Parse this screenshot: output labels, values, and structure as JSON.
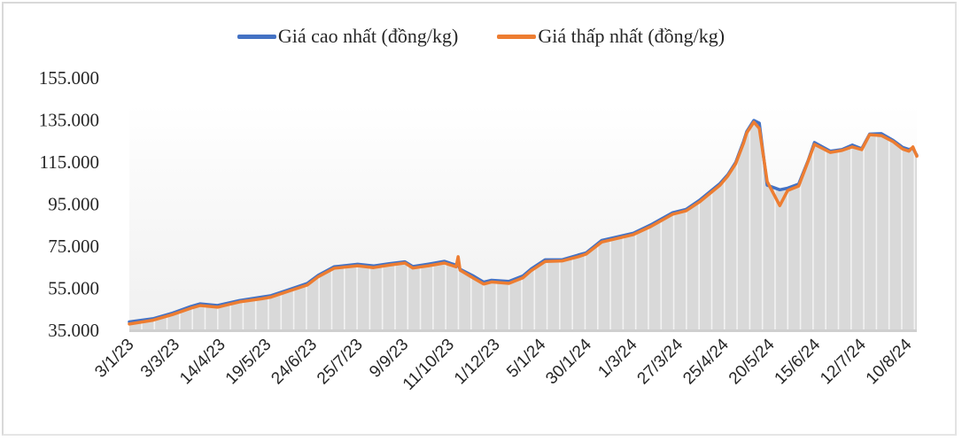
{
  "chart_data": {
    "type": "line",
    "title": "",
    "xlabel": "",
    "ylabel": "",
    "ylim": [
      35000,
      155000
    ],
    "yticks": [
      "155.000",
      "135.000",
      "115.000",
      "95.000",
      "75.000",
      "55.000",
      "35.000"
    ],
    "ytick_values": [
      155000,
      135000,
      115000,
      95000,
      75000,
      55000,
      35000
    ],
    "grid": false,
    "legend_position": "top",
    "area_fill": true,
    "x_tick_labels": [
      "3/1/23",
      "3/3/23",
      "14/4/23",
      "19/5/23",
      "24/6/23",
      "25/7/23",
      "9/9/23",
      "11/10/23",
      "1/12/23",
      "5/1/24",
      "30/1/24",
      "1/3/24",
      "27/3/24",
      "25/4/24",
      "20/5/24",
      "15/6/24",
      "12/7/24",
      "10/8/24"
    ],
    "x": [
      0,
      0.03,
      0.055,
      0.078,
      0.09,
      0.112,
      0.14,
      0.168,
      0.18,
      0.2,
      0.226,
      0.24,
      0.26,
      0.29,
      0.31,
      0.33,
      0.35,
      0.36,
      0.38,
      0.4,
      0.415,
      0.4175,
      0.42,
      0.437,
      0.45,
      0.46,
      0.482,
      0.5,
      0.51,
      0.528,
      0.55,
      0.57,
      0.58,
      0.6,
      0.615,
      0.64,
      0.662,
      0.69,
      0.707,
      0.724,
      0.75,
      0.76,
      0.77,
      0.78,
      0.784,
      0.793,
      0.8,
      0.81,
      0.826,
      0.836,
      0.85,
      0.862,
      0.87,
      0.89,
      0.905,
      0.918,
      0.93,
      0.94,
      0.955,
      0.97,
      0.982,
      0.99,
      0.995,
      1.0
    ],
    "series": [
      {
        "name": "Giá cao nhất (đồng/kg)",
        "color": "#4472C4",
        "values": [
          39000,
          40500,
          43200,
          46300,
          47600,
          46800,
          49200,
          50800,
          51500,
          54000,
          57300,
          61200,
          65200,
          66400,
          65600,
          66700,
          67600,
          65300,
          66500,
          67800,
          66000,
          66300,
          64000,
          60800,
          57900,
          58800,
          58300,
          60900,
          64100,
          68500,
          68600,
          70800,
          71800,
          77800,
          79000,
          81200,
          85100,
          90900,
          92500,
          96800,
          104800,
          109000,
          114800,
          124800,
          129500,
          134800,
          133500,
          104000,
          101800,
          102600,
          104500,
          115700,
          124300,
          120200,
          121000,
          123100,
          121300,
          128300,
          128500,
          125300,
          122000,
          121000,
          121600,
          118200
        ]
      },
      {
        "name": "Giá thấp nhất (đồng/kg)",
        "color": "#ED7D31",
        "values": [
          38000,
          39800,
          42500,
          45500,
          46800,
          46000,
          48500,
          50000,
          50800,
          53300,
          56500,
          60500,
          64500,
          65700,
          64800,
          66000,
          67000,
          64600,
          65700,
          67000,
          65200,
          70000,
          63600,
          59800,
          57000,
          58000,
          57300,
          60000,
          63300,
          67700,
          68000,
          70000,
          71200,
          77000,
          78300,
          80500,
          84300,
          90200,
          91800,
          96000,
          104000,
          108400,
          114200,
          124000,
          128900,
          134000,
          131000,
          105700,
          94300,
          101500,
          103600,
          115400,
          123400,
          119600,
          120500,
          122200,
          120900,
          128000,
          127600,
          124700,
          121200,
          120200,
          122200,
          117800
        ]
      }
    ]
  },
  "legend": {
    "items": [
      {
        "label": "Giá cao nhất (đồng/kg)",
        "color": "#4472C4"
      },
      {
        "label": "Giá thấp nhất (đồng/kg)",
        "color": "#ED7D31"
      }
    ]
  }
}
